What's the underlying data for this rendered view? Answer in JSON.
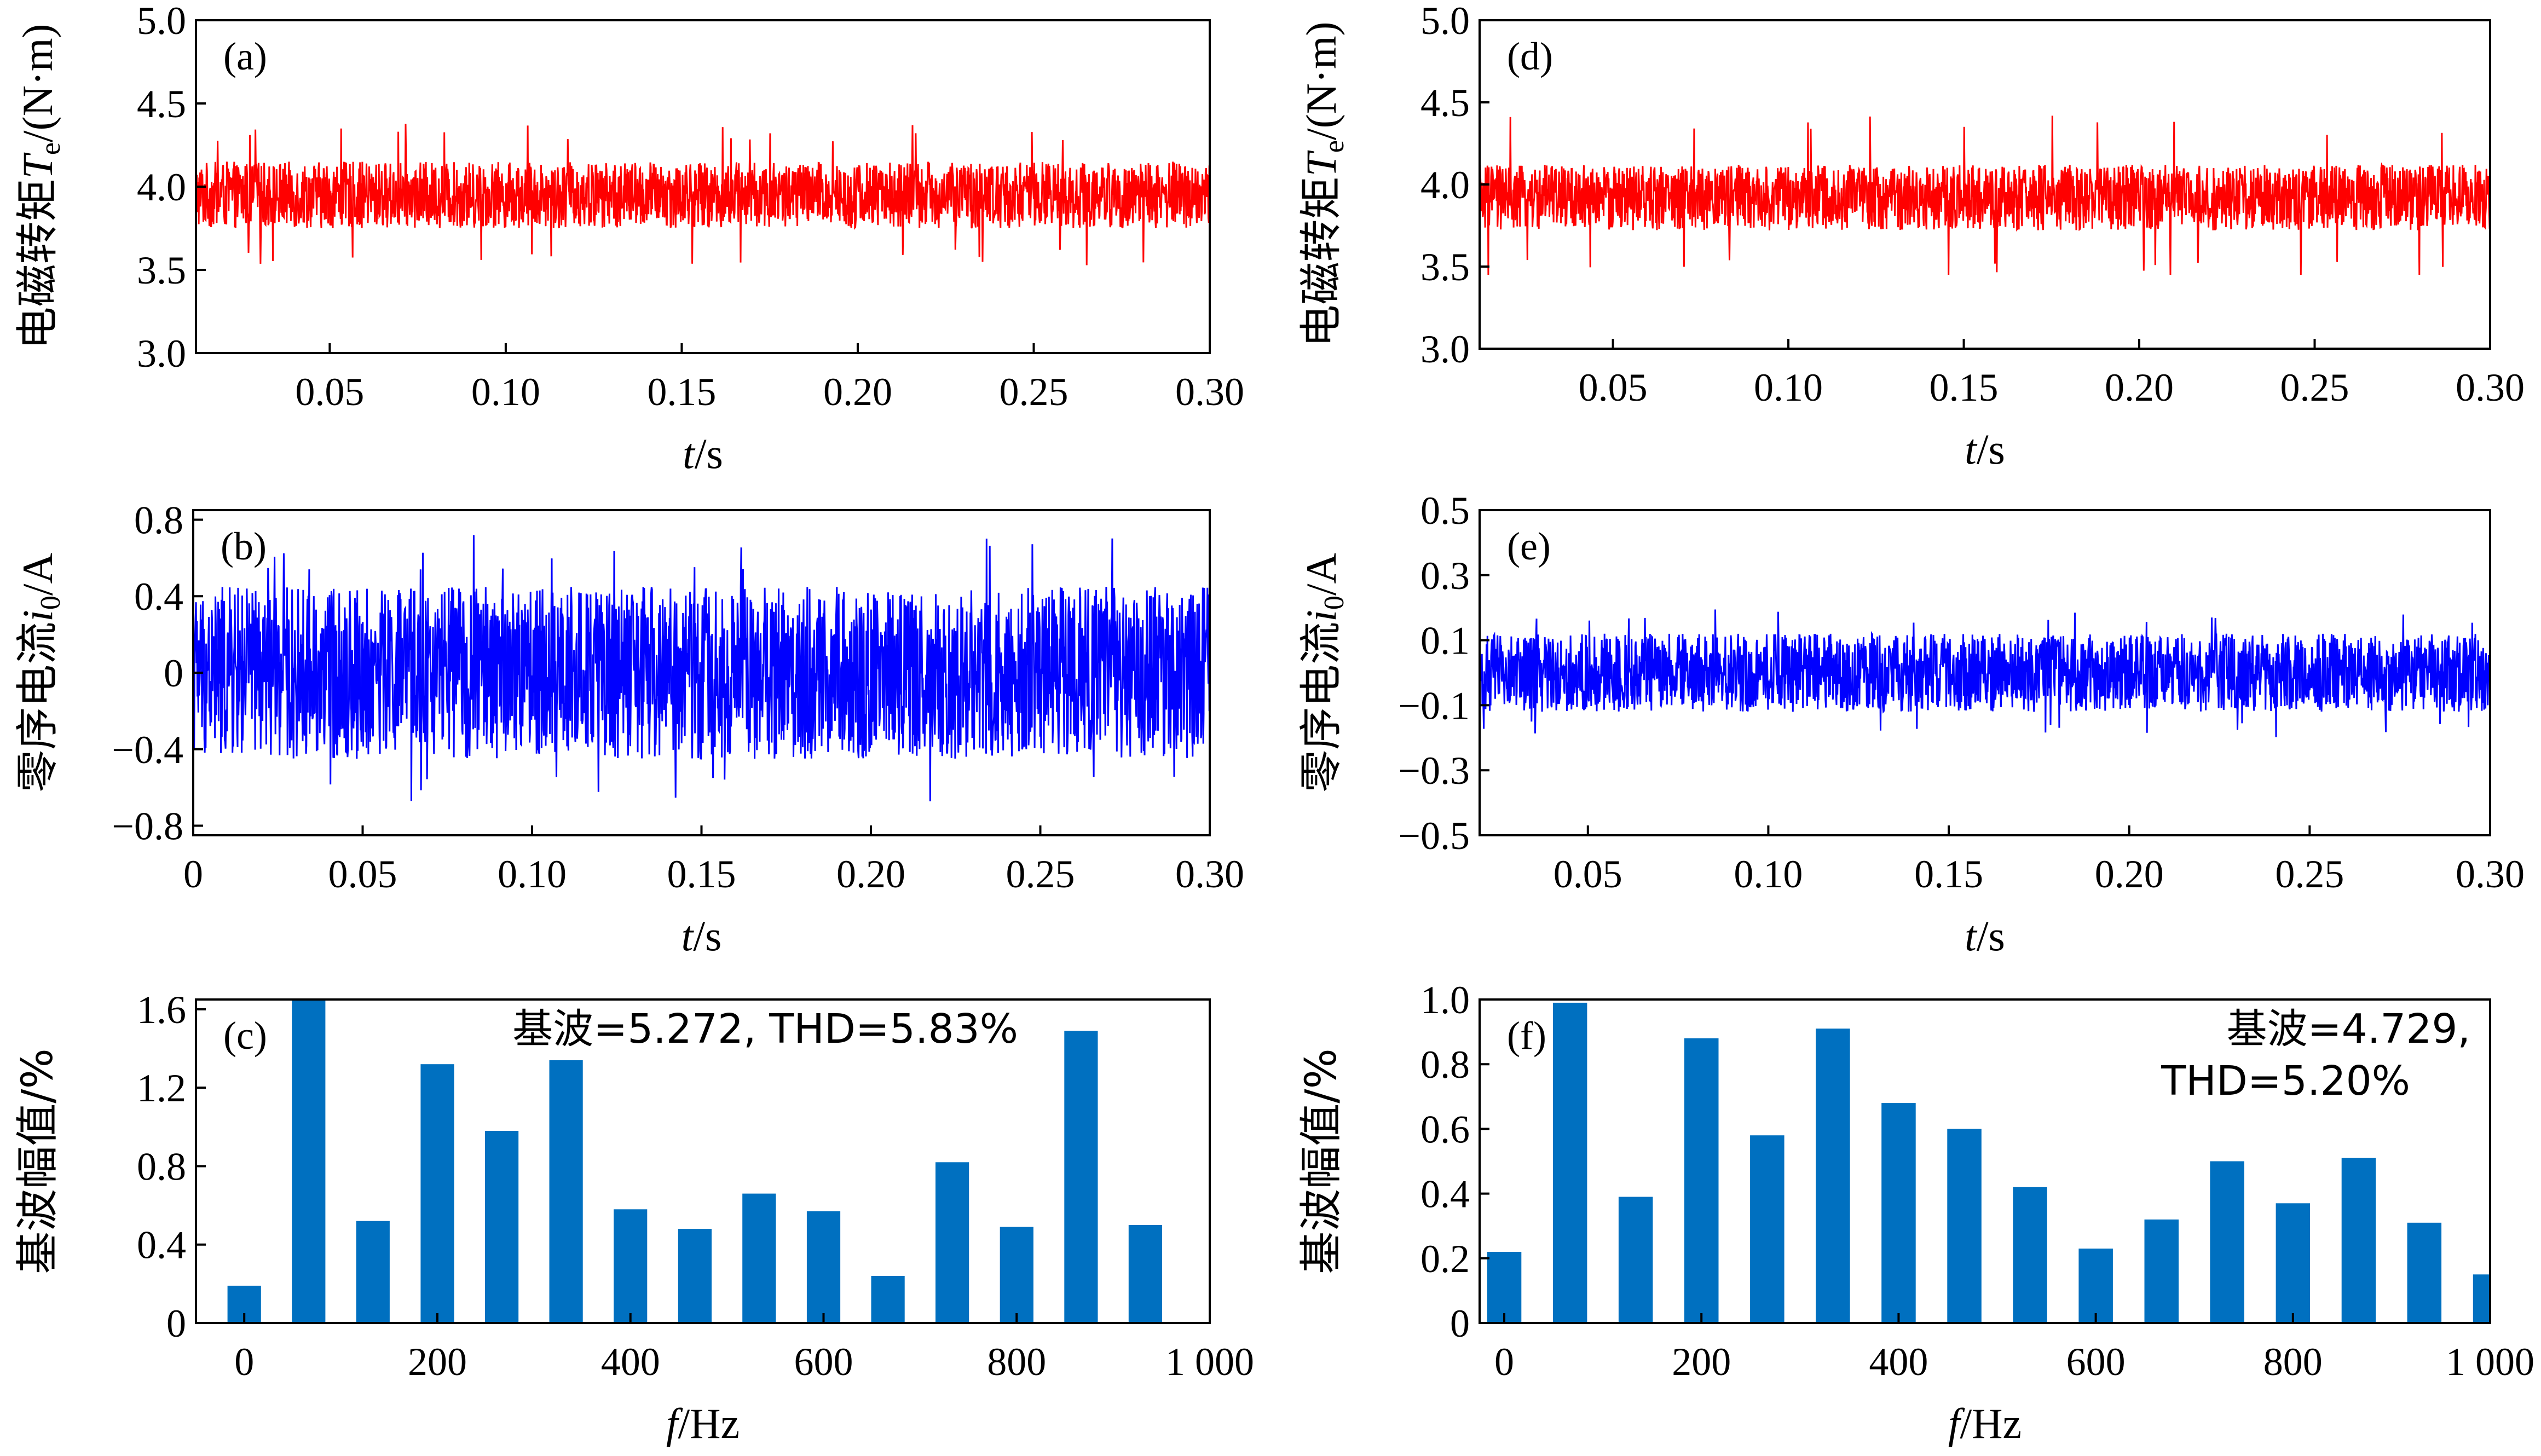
{
  "chart_data": [
    {
      "id": "a",
      "type": "line",
      "panel_label": "(a)",
      "ylabel": {
        "pre": "电磁转矩",
        "sym": "T",
        "sub": "e",
        "post": "/(N·m)"
      },
      "xlabel": {
        "sym": "t",
        "post": "/s"
      },
      "color": "#ff0000",
      "ylim": [
        3.0,
        5.0
      ],
      "xlim": [
        0.012,
        0.3
      ],
      "yticks": [
        3.0,
        3.5,
        4.0,
        4.5,
        5.0
      ],
      "ytick_labels": [
        "3.0",
        "3.5",
        "4.0",
        "4.5",
        "5.0"
      ],
      "xticks": [
        0.05,
        0.1,
        0.15,
        0.2,
        0.25,
        0.3
      ],
      "xtick_labels": [
        "0.05",
        "0.10",
        "0.15",
        "0.20",
        "0.25",
        "0.30"
      ],
      "signal": {
        "mean": 3.95,
        "band": 0.2,
        "min": 3.45,
        "max": 4.38
      }
    },
    {
      "id": "b",
      "type": "line",
      "panel_label": "(b)",
      "ylabel": {
        "pre": "零序电流",
        "sym": "i",
        "sub": "0",
        "post": "/A"
      },
      "xlabel": {
        "sym": "t",
        "post": "/s"
      },
      "color": "#0000ff",
      "ylim": [
        -0.85,
        0.85
      ],
      "xlim": [
        0.0,
        0.3
      ],
      "yticks": [
        -0.8,
        -0.4,
        0,
        0.4,
        0.8
      ],
      "ytick_labels": [
        "−0.8",
        "−0.4",
        "0",
        "0.4",
        "0.8"
      ],
      "xticks": [
        0,
        0.05,
        0.1,
        0.15,
        0.2,
        0.25,
        0.3
      ],
      "xtick_labels": [
        "0",
        "0.05",
        "0.10",
        "0.15",
        "0.20",
        "0.25",
        "0.30"
      ],
      "signal": {
        "mean": 0.0,
        "band": 0.45,
        "min": -0.7,
        "max": 0.72
      }
    },
    {
      "id": "c",
      "type": "bar",
      "panel_label": "(c)",
      "ylabel": {
        "pre": "基波幅值/%",
        "sym": "",
        "sub": "",
        "post": ""
      },
      "xlabel": {
        "sym": "f",
        "post": "/Hz"
      },
      "color": "#0070c0",
      "annotation": [
        "基波=5.272, THD=5.83%"
      ],
      "ylim": [
        0,
        1.65
      ],
      "xlim": [
        -50,
        1000
      ],
      "yticks": [
        0,
        0.4,
        0.8,
        1.2,
        1.6
      ],
      "ytick_labels": [
        "0",
        "0.4",
        "0.8",
        "1.2",
        "1.6"
      ],
      "xticks": [
        0,
        200,
        400,
        600,
        800,
        1000
      ],
      "xtick_labels": [
        "0",
        "200",
        "400",
        "600",
        "800",
        "1 000"
      ],
      "x": [
        0,
        66.7,
        133.3,
        200,
        266.7,
        333.3,
        400,
        466.7,
        533.3,
        600,
        666.7,
        733.3,
        800,
        866.7,
        933.3
      ],
      "values": [
        0.19,
        1.65,
        0.52,
        1.32,
        0.98,
        1.34,
        0.58,
        0.48,
        0.66,
        0.57,
        0.24,
        0.82,
        0.49,
        1.49,
        0.5
      ]
    },
    {
      "id": "d",
      "type": "line",
      "panel_label": "(d)",
      "ylabel": {
        "pre": "电磁转矩",
        "sym": "T",
        "sub": "e",
        "post": "/(N·m)"
      },
      "xlabel": {
        "sym": "t",
        "post": "/s"
      },
      "color": "#ff0000",
      "ylim": [
        3.0,
        5.0
      ],
      "xlim": [
        0.012,
        0.3
      ],
      "yticks": [
        3.0,
        3.5,
        4.0,
        4.5,
        5.0
      ],
      "ytick_labels": [
        "3.0",
        "3.5",
        "4.0",
        "4.5",
        "5.0"
      ],
      "xticks": [
        0.05,
        0.1,
        0.15,
        0.2,
        0.25,
        0.3
      ],
      "xtick_labels": [
        "0.05",
        "0.10",
        "0.15",
        "0.20",
        "0.25",
        "0.30"
      ],
      "signal": {
        "mean": 3.92,
        "band": 0.2,
        "min": 3.45,
        "max": 4.42
      }
    },
    {
      "id": "e",
      "type": "line",
      "panel_label": "(e)",
      "ylabel": {
        "pre": "零序电流",
        "sym": "i",
        "sub": "0",
        "post": "/A"
      },
      "xlabel": {
        "sym": "t",
        "post": "/s"
      },
      "color": "#0000ff",
      "ylim": [
        -0.5,
        0.5
      ],
      "xlim": [
        0.02,
        0.3
      ],
      "yticks": [
        -0.5,
        -0.3,
        -0.1,
        0.1,
        0.3,
        0.5
      ],
      "ytick_labels": [
        "−0.5",
        "−0.3",
        "−0.1",
        "0.1",
        "0.3",
        "0.5"
      ],
      "xticks": [
        0.05,
        0.1,
        0.15,
        0.2,
        0.25,
        0.3
      ],
      "xtick_labels": [
        "0.05",
        "0.10",
        "0.15",
        "0.20",
        "0.25",
        "0.30"
      ],
      "signal": {
        "mean": 0.0,
        "band": 0.12,
        "min": -0.2,
        "max": 0.2
      }
    },
    {
      "id": "f",
      "type": "bar",
      "panel_label": "(f)",
      "ylabel": {
        "pre": "基波幅值/%",
        "sym": "",
        "sub": "",
        "post": ""
      },
      "xlabel": {
        "sym": "f",
        "post": "/Hz"
      },
      "color": "#0070c0",
      "annotation": [
        "基波=4.729,",
        "THD=5.20%"
      ],
      "ylim": [
        0,
        1.0
      ],
      "xlim": [
        -25,
        1000
      ],
      "yticks": [
        0,
        0.2,
        0.4,
        0.6,
        0.8,
        1.0
      ],
      "ytick_labels": [
        "0",
        "0.2",
        "0.4",
        "0.6",
        "0.8",
        "1.0"
      ],
      "xticks": [
        0,
        200,
        400,
        600,
        800,
        1000
      ],
      "xtick_labels": [
        "0",
        "200",
        "400",
        "600",
        "800",
        "1 000"
      ],
      "x": [
        0,
        66.7,
        133.3,
        200,
        266.7,
        333.3,
        400,
        466.7,
        533.3,
        600,
        666.7,
        733.3,
        800,
        866.7,
        933.3,
        1000
      ],
      "values": [
        0.22,
        0.99,
        0.39,
        0.88,
        0.58,
        0.91,
        0.68,
        0.6,
        0.42,
        0.23,
        0.32,
        0.5,
        0.37,
        0.51,
        0.31,
        0.15
      ]
    }
  ]
}
